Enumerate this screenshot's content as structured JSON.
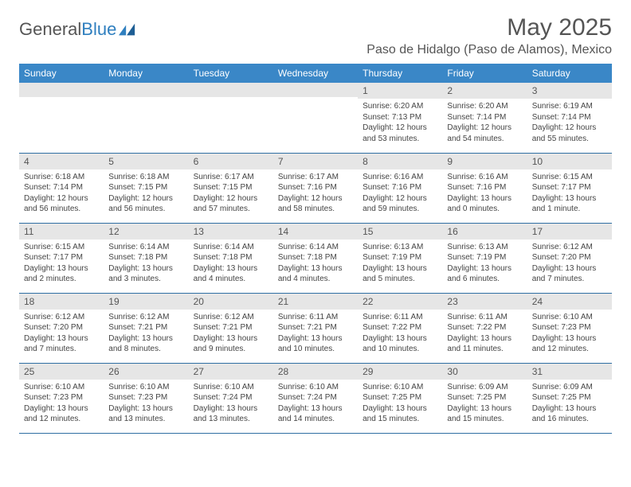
{
  "brand": {
    "part1": "General",
    "part2": "Blue"
  },
  "title": "May 2025",
  "location": "Paso de Hidalgo (Paso de Alamos), Mexico",
  "colors": {
    "header_bg": "#3a87c7",
    "header_text": "#ffffff",
    "daynum_bg": "#e6e6e6",
    "row_border": "#2f6fa3",
    "text": "#444444",
    "title_text": "#555555"
  },
  "weekdays": [
    "Sunday",
    "Monday",
    "Tuesday",
    "Wednesday",
    "Thursday",
    "Friday",
    "Saturday"
  ],
  "weeks": [
    [
      null,
      null,
      null,
      null,
      {
        "n": "1",
        "sr": "6:20 AM",
        "ss": "7:13 PM",
        "dl": "12 hours and 53 minutes."
      },
      {
        "n": "2",
        "sr": "6:20 AM",
        "ss": "7:14 PM",
        "dl": "12 hours and 54 minutes."
      },
      {
        "n": "3",
        "sr": "6:19 AM",
        "ss": "7:14 PM",
        "dl": "12 hours and 55 minutes."
      }
    ],
    [
      {
        "n": "4",
        "sr": "6:18 AM",
        "ss": "7:14 PM",
        "dl": "12 hours and 56 minutes."
      },
      {
        "n": "5",
        "sr": "6:18 AM",
        "ss": "7:15 PM",
        "dl": "12 hours and 56 minutes."
      },
      {
        "n": "6",
        "sr": "6:17 AM",
        "ss": "7:15 PM",
        "dl": "12 hours and 57 minutes."
      },
      {
        "n": "7",
        "sr": "6:17 AM",
        "ss": "7:16 PM",
        "dl": "12 hours and 58 minutes."
      },
      {
        "n": "8",
        "sr": "6:16 AM",
        "ss": "7:16 PM",
        "dl": "12 hours and 59 minutes."
      },
      {
        "n": "9",
        "sr": "6:16 AM",
        "ss": "7:16 PM",
        "dl": "13 hours and 0 minutes."
      },
      {
        "n": "10",
        "sr": "6:15 AM",
        "ss": "7:17 PM",
        "dl": "13 hours and 1 minute."
      }
    ],
    [
      {
        "n": "11",
        "sr": "6:15 AM",
        "ss": "7:17 PM",
        "dl": "13 hours and 2 minutes."
      },
      {
        "n": "12",
        "sr": "6:14 AM",
        "ss": "7:18 PM",
        "dl": "13 hours and 3 minutes."
      },
      {
        "n": "13",
        "sr": "6:14 AM",
        "ss": "7:18 PM",
        "dl": "13 hours and 4 minutes."
      },
      {
        "n": "14",
        "sr": "6:14 AM",
        "ss": "7:18 PM",
        "dl": "13 hours and 4 minutes."
      },
      {
        "n": "15",
        "sr": "6:13 AM",
        "ss": "7:19 PM",
        "dl": "13 hours and 5 minutes."
      },
      {
        "n": "16",
        "sr": "6:13 AM",
        "ss": "7:19 PM",
        "dl": "13 hours and 6 minutes."
      },
      {
        "n": "17",
        "sr": "6:12 AM",
        "ss": "7:20 PM",
        "dl": "13 hours and 7 minutes."
      }
    ],
    [
      {
        "n": "18",
        "sr": "6:12 AM",
        "ss": "7:20 PM",
        "dl": "13 hours and 7 minutes."
      },
      {
        "n": "19",
        "sr": "6:12 AM",
        "ss": "7:21 PM",
        "dl": "13 hours and 8 minutes."
      },
      {
        "n": "20",
        "sr": "6:12 AM",
        "ss": "7:21 PM",
        "dl": "13 hours and 9 minutes."
      },
      {
        "n": "21",
        "sr": "6:11 AM",
        "ss": "7:21 PM",
        "dl": "13 hours and 10 minutes."
      },
      {
        "n": "22",
        "sr": "6:11 AM",
        "ss": "7:22 PM",
        "dl": "13 hours and 10 minutes."
      },
      {
        "n": "23",
        "sr": "6:11 AM",
        "ss": "7:22 PM",
        "dl": "13 hours and 11 minutes."
      },
      {
        "n": "24",
        "sr": "6:10 AM",
        "ss": "7:23 PM",
        "dl": "13 hours and 12 minutes."
      }
    ],
    [
      {
        "n": "25",
        "sr": "6:10 AM",
        "ss": "7:23 PM",
        "dl": "13 hours and 12 minutes."
      },
      {
        "n": "26",
        "sr": "6:10 AM",
        "ss": "7:23 PM",
        "dl": "13 hours and 13 minutes."
      },
      {
        "n": "27",
        "sr": "6:10 AM",
        "ss": "7:24 PM",
        "dl": "13 hours and 13 minutes."
      },
      {
        "n": "28",
        "sr": "6:10 AM",
        "ss": "7:24 PM",
        "dl": "13 hours and 14 minutes."
      },
      {
        "n": "29",
        "sr": "6:10 AM",
        "ss": "7:25 PM",
        "dl": "13 hours and 15 minutes."
      },
      {
        "n": "30",
        "sr": "6:09 AM",
        "ss": "7:25 PM",
        "dl": "13 hours and 15 minutes."
      },
      {
        "n": "31",
        "sr": "6:09 AM",
        "ss": "7:25 PM",
        "dl": "13 hours and 16 minutes."
      }
    ]
  ],
  "labels": {
    "sunrise": "Sunrise:",
    "sunset": "Sunset:",
    "daylight": "Daylight:"
  }
}
